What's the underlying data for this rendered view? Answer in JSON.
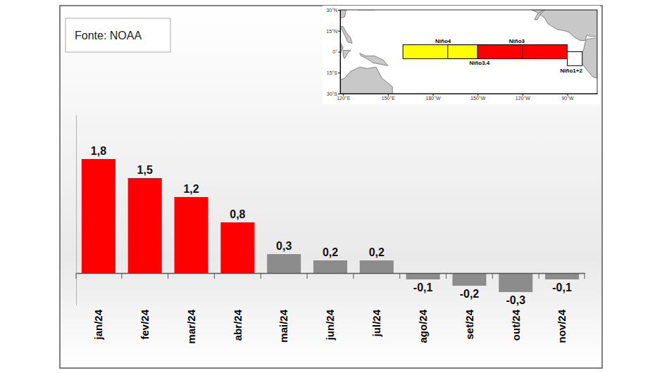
{
  "chart_data": {
    "type": "bar",
    "annotations": [
      "Fonte: NOAA"
    ],
    "categories": [
      "jan/24",
      "fev/24",
      "mar/24",
      "abr/24",
      "mai/24",
      "jun/24",
      "jul/24",
      "ago/24",
      "set/24",
      "out/24",
      "nov/24"
    ],
    "values": [
      1.8,
      1.5,
      1.2,
      0.8,
      0.3,
      0.2,
      0.2,
      -0.1,
      -0.2,
      -0.3,
      -0.1
    ],
    "value_labels": [
      "1,8",
      "1,5",
      "1,2",
      "0,8",
      "0,3",
      "0,2",
      "0,2",
      "-0,1",
      "-0,2",
      "-0,3",
      "-0,1"
    ],
    "colors": [
      "#ff0000",
      "#ff0000",
      "#ff0000",
      "#ff0000",
      "#8c8c8c",
      "#8c8c8c",
      "#8c8c8c",
      "#8c8c8c",
      "#8c8c8c",
      "#8c8c8c",
      "#8c8c8c"
    ],
    "ylim": [
      -0.5,
      2.5
    ],
    "data_labels": true,
    "tick_labels": "x"
  },
  "inset_map": {
    "type": "map",
    "xlim": [
      118,
      290
    ],
    "ylim": [
      -30,
      30
    ],
    "xticks": [
      {
        "value": 120,
        "label": "120°E"
      },
      {
        "value": 150,
        "label": "150°E"
      },
      {
        "value": 180,
        "label": "180°W"
      },
      {
        "value": 210,
        "label": "150°W"
      },
      {
        "value": 240,
        "label": "120°W"
      },
      {
        "value": 270,
        "label": "90°W"
      }
    ],
    "yticks": [
      {
        "value": 30,
        "label": "30°N"
      },
      {
        "value": 15,
        "label": "15°N"
      },
      {
        "value": 0,
        "label": "0°"
      },
      {
        "value": -15,
        "label": "15°S"
      },
      {
        "value": -30,
        "label": "30°S"
      }
    ],
    "regions": [
      {
        "name": "Niño4",
        "lon": [
          160,
          210
        ],
        "lat": [
          -5,
          5
        ],
        "color": "#ffff00"
      },
      {
        "name": "Niño3",
        "lon": [
          210,
          270
        ],
        "lat": [
          -5,
          5
        ],
        "color": "#ff0000"
      },
      {
        "name": "Niño3.4",
        "lon": [
          190,
          240
        ],
        "lat": [
          -5,
          5
        ]
      },
      {
        "name": "Niño1+2",
        "lon": [
          270,
          280
        ],
        "lat": [
          -10,
          0
        ],
        "color": "#ffffff"
      }
    ]
  }
}
